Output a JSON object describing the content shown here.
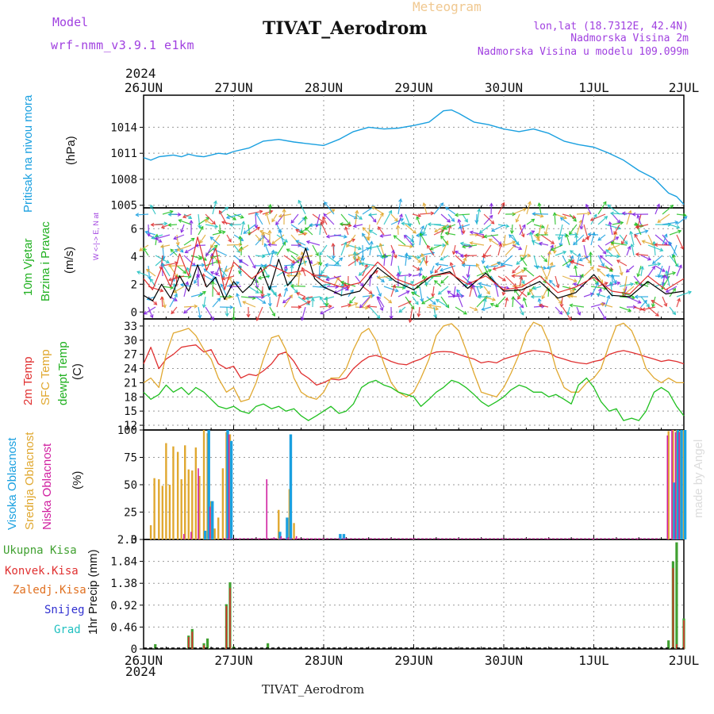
{
  "header": {
    "model_label": "Model",
    "model_name": "wrf-nmm_v3.9.1 e1km",
    "kind": "Meteogram",
    "station": "TIVAT_Aerodrom",
    "lonlat": "lon,lat (18.7312E, 42.4N)",
    "altitude": "Nadmorska Visina 2m",
    "model_altitude": "Nadmorska Visina u modelu 109.099m",
    "watermark": "made by Angel",
    "footer_station": "TIVAT_Aerodrom"
  },
  "time_axis": {
    "year": "2024",
    "ticks": [
      "26JUN",
      "27JUN",
      "28JUN",
      "29JUN",
      "30JUN",
      "1JUL",
      "2JUL"
    ]
  },
  "colors": {
    "pressure": "#1aa0e0",
    "t2m": "#e03030",
    "tsfc": "#e0a830",
    "dewpt": "#20c020",
    "wind_speed": "#000000",
    "cloud_high": "#1aa0e0",
    "cloud_mid": "#e0a830",
    "cloud_low": "#d020a0",
    "precip_total": "#40a030",
    "precip_conv": "#e03030",
    "precip_frozen": "#e07020",
    "precip_snow": "#3030d0",
    "precip_hail": "#20c0c0",
    "wind_key": "#a040e0"
  },
  "chart_data": [
    {
      "type": "line",
      "panel": "pressure",
      "ylabel": [
        "Pritisak na nivou mora",
        "(hPa)"
      ],
      "yticks": [
        1005,
        1008,
        1011,
        1014
      ],
      "ylim": [
        1004.7,
        1017.7
      ],
      "x_unit": "days since 26JUN 00Z",
      "series": [
        {
          "color_key": "pressure",
          "x": [
            0,
            0.08,
            0.17,
            0.25,
            0.33,
            0.42,
            0.5,
            0.58,
            0.67,
            0.75,
            0.83,
            0.92,
            1.0,
            1.17,
            1.33,
            1.5,
            1.67,
            1.83,
            2.0,
            2.17,
            2.33,
            2.5,
            2.67,
            2.83,
            3.0,
            3.17,
            3.33,
            3.42,
            3.5,
            3.67,
            3.83,
            4.0,
            4.17,
            4.33,
            4.5,
            4.67,
            4.83,
            5.0,
            5.17,
            5.33,
            5.5,
            5.67,
            5.83,
            5.92,
            6.0
          ],
          "values": [
            1010.5,
            1010.2,
            1010.6,
            1010.7,
            1010.8,
            1010.6,
            1010.9,
            1010.7,
            1010.6,
            1010.8,
            1011.0,
            1010.9,
            1011.2,
            1011.6,
            1012.4,
            1012.6,
            1012.3,
            1012.1,
            1011.9,
            1012.6,
            1013.5,
            1014.0,
            1013.8,
            1013.9,
            1014.2,
            1014.6,
            1015.9,
            1016.0,
            1015.6,
            1014.6,
            1014.3,
            1013.8,
            1013.5,
            1013.8,
            1013.3,
            1012.4,
            1012.0,
            1011.7,
            1011.0,
            1010.2,
            1009.0,
            1008.1,
            1006.4,
            1006.0,
            1005.1
          ]
        }
      ]
    },
    {
      "type": "line",
      "panel": "wind",
      "ylabel": [
        "10m Vjetar",
        "Brzina i Pravac",
        "(m/s)"
      ],
      "wind_key": "W <-|-> E, N at top, S at bottom",
      "yticks": [
        0,
        2,
        4,
        6
      ],
      "ylim": [
        -0.5,
        7.5
      ],
      "x_unit": "days since 26JUN 00Z",
      "series": [
        {
          "name": "speed",
          "color_key": "wind_speed",
          "x": [
            0,
            0.1,
            0.2,
            0.3,
            0.4,
            0.5,
            0.6,
            0.7,
            0.8,
            0.9,
            1.0,
            1.1,
            1.2,
            1.3,
            1.4,
            1.5,
            1.6,
            1.7,
            1.8,
            1.9,
            2.0,
            2.2,
            2.4,
            2.6,
            2.8,
            3.0,
            3.2,
            3.4,
            3.6,
            3.8,
            4.0,
            4.2,
            4.4,
            4.6,
            4.8,
            5.0,
            5.2,
            5.4,
            5.6,
            5.8,
            6.0
          ],
          "values": [
            1.2,
            0.8,
            2.0,
            1.0,
            2.6,
            1.5,
            3.4,
            1.8,
            2.5,
            0.9,
            2.2,
            1.4,
            2.0,
            3.2,
            1.6,
            3.8,
            1.9,
            2.7,
            4.6,
            2.4,
            1.8,
            1.2,
            1.5,
            3.2,
            2.2,
            1.6,
            2.6,
            2.9,
            1.7,
            2.8,
            1.5,
            1.6,
            2.2,
            1.0,
            1.4,
            2.7,
            1.2,
            1.1,
            2.2,
            1.3,
            1.5
          ]
        },
        {
          "name": "gust",
          "color_key": "t2m",
          "x": [
            0,
            0.1,
            0.2,
            0.3,
            0.4,
            0.5,
            0.6,
            0.7,
            0.8,
            0.9,
            1.0,
            1.2,
            1.4,
            1.6,
            1.8,
            2.0,
            2.2,
            2.4,
            2.6,
            2.8,
            3.0,
            3.2,
            3.4,
            3.6,
            3.8,
            4.0,
            4.2,
            4.4,
            4.6,
            4.8,
            5.0,
            5.2,
            5.4,
            5.6,
            5.8,
            6.0
          ],
          "values": [
            2.4,
            1.6,
            3.2,
            1.8,
            4.2,
            2.6,
            5.4,
            3.0,
            4.6,
            1.6,
            3.6,
            2.4,
            3.4,
            2.8,
            3.0,
            2.2,
            1.8,
            2.1,
            3.6,
            2.4,
            1.9,
            2.6,
            2.8,
            2.0,
            2.6,
            1.6,
            1.8,
            2.6,
            1.4,
            1.8,
            2.5,
            1.5,
            1.3,
            2.6,
            1.6,
            2.4
          ]
        }
      ]
    },
    {
      "type": "line",
      "panel": "temperature",
      "ylabel": [
        "2m Temp",
        "SFC Temp",
        "dewpt Temp",
        "(C)"
      ],
      "yticks": [
        12,
        15,
        18,
        21,
        24,
        27,
        30,
        33
      ],
      "ylim": [
        11,
        34.5
      ],
      "x_unit": "days since 26JUN 00Z",
      "series": [
        {
          "name": "2m Temp",
          "color_key": "t2m",
          "x": [
            0,
            0.08,
            0.17,
            0.25,
            0.33,
            0.42,
            0.5,
            0.58,
            0.67,
            0.75,
            0.83,
            0.92,
            1.0,
            1.08,
            1.17,
            1.25,
            1.33,
            1.42,
            1.5,
            1.58,
            1.67,
            1.75,
            1.83,
            1.92,
            2.0,
            2.08,
            2.17,
            2.25,
            2.33,
            2.42,
            2.5,
            2.58,
            2.67,
            2.75,
            2.83,
            2.92,
            3.0,
            3.08,
            3.17,
            3.25,
            3.33,
            3.42,
            3.5,
            3.58,
            3.67,
            3.75,
            3.83,
            3.92,
            4.0,
            4.08,
            4.17,
            4.25,
            4.33,
            4.42,
            4.5,
            4.58,
            4.67,
            4.75,
            4.83,
            4.92,
            5.0,
            5.08,
            5.17,
            5.25,
            5.33,
            5.42,
            5.5,
            5.58,
            5.67,
            5.75,
            5.83,
            5.92,
            6.0
          ],
          "values": [
            25,
            28.5,
            24,
            26,
            27,
            28.5,
            28.8,
            29,
            27.5,
            28,
            25,
            24,
            24.5,
            22,
            22.8,
            22.5,
            23.5,
            25,
            27,
            27.5,
            25.5,
            23,
            22,
            20.5,
            21,
            21.8,
            21.6,
            22,
            24,
            25.5,
            26.5,
            26.8,
            26.2,
            25.5,
            25,
            24.8,
            25.5,
            26,
            27,
            27.5,
            27.6,
            27.5,
            27,
            26.5,
            26,
            25.2,
            25.5,
            25.2,
            26,
            26.5,
            27,
            27.5,
            27.8,
            27.6,
            27.4,
            26.5,
            26,
            25.5,
            25.2,
            25,
            25.5,
            25.8,
            27,
            27.5,
            27.8,
            27.4,
            27,
            26.5,
            26,
            25.5,
            25.8,
            25.5,
            25
          ]
        },
        {
          "name": "SFC Temp",
          "color_key": "tsfc",
          "x": [
            0,
            0.08,
            0.17,
            0.25,
            0.33,
            0.42,
            0.5,
            0.58,
            0.67,
            0.75,
            0.83,
            0.92,
            1.0,
            1.08,
            1.17,
            1.25,
            1.33,
            1.42,
            1.5,
            1.58,
            1.67,
            1.75,
            1.83,
            1.92,
            2.0,
            2.08,
            2.17,
            2.25,
            2.33,
            2.42,
            2.5,
            2.58,
            2.67,
            2.75,
            2.83,
            2.92,
            3.0,
            3.08,
            3.17,
            3.25,
            3.33,
            3.42,
            3.5,
            3.58,
            3.67,
            3.75,
            3.83,
            3.92,
            4.0,
            4.08,
            4.17,
            4.25,
            4.33,
            4.42,
            4.5,
            4.58,
            4.67,
            4.75,
            4.83,
            4.92,
            5.0,
            5.08,
            5.17,
            5.25,
            5.33,
            5.42,
            5.5,
            5.58,
            5.67,
            5.75,
            5.83,
            5.92,
            6.0
          ],
          "values": [
            21,
            22,
            20,
            27,
            31.5,
            32,
            32.5,
            31,
            28,
            26,
            22,
            19,
            20,
            17,
            17.5,
            21,
            26,
            30.5,
            31,
            28,
            22,
            19,
            18,
            17.5,
            19,
            22,
            22,
            24,
            28,
            31.5,
            32.5,
            30,
            25,
            21,
            19,
            18,
            19,
            22,
            26,
            31,
            33,
            33.5,
            32,
            28,
            23,
            19,
            18.5,
            18,
            20,
            23,
            27,
            31.5,
            33.8,
            33,
            29.5,
            24,
            20,
            19,
            19,
            21,
            22,
            24,
            29,
            33,
            33.6,
            32,
            28.5,
            24,
            22,
            21,
            22,
            21,
            21
          ]
        },
        {
          "name": "dewpt Temp",
          "color_key": "dewpt",
          "x": [
            0,
            0.08,
            0.17,
            0.25,
            0.33,
            0.42,
            0.5,
            0.58,
            0.67,
            0.75,
            0.83,
            0.92,
            1.0,
            1.08,
            1.17,
            1.25,
            1.33,
            1.42,
            1.5,
            1.58,
            1.67,
            1.75,
            1.83,
            1.92,
            2.0,
            2.08,
            2.17,
            2.25,
            2.33,
            2.42,
            2.5,
            2.58,
            2.67,
            2.75,
            2.83,
            2.92,
            3.0,
            3.08,
            3.17,
            3.25,
            3.33,
            3.42,
            3.5,
            3.58,
            3.67,
            3.75,
            3.83,
            3.92,
            4.0,
            4.08,
            4.17,
            4.25,
            4.33,
            4.42,
            4.5,
            4.58,
            4.67,
            4.75,
            4.83,
            4.92,
            5.0,
            5.08,
            5.17,
            5.25,
            5.33,
            5.42,
            5.5,
            5.58,
            5.67,
            5.75,
            5.83,
            5.92,
            6.0
          ],
          "values": [
            19,
            17.5,
            18.5,
            20.5,
            19,
            20,
            18.5,
            20,
            19,
            17.5,
            16,
            15.5,
            16,
            15,
            14.5,
            16,
            16.5,
            15.5,
            16,
            15,
            15.5,
            14,
            13,
            14,
            15,
            16,
            14.5,
            15,
            16.5,
            20,
            21,
            21.5,
            20.5,
            20,
            19,
            18.5,
            18,
            16,
            17.5,
            19,
            20,
            21.5,
            21,
            20,
            18.5,
            17,
            16,
            17,
            18,
            19.5,
            20.5,
            20,
            19,
            19,
            18,
            18.5,
            17.5,
            16.5,
            20.5,
            22,
            20,
            17,
            15,
            15.5,
            13,
            13.5,
            13,
            15,
            19,
            20,
            19,
            16,
            14
          ]
        }
      ]
    },
    {
      "type": "bar",
      "panel": "clouds",
      "ylabel": [
        "Visoka Oblacnost",
        "Srednja Oblacnost",
        "Niska Oblacnost",
        "(%)"
      ],
      "yticks": [
        0,
        25,
        50,
        75,
        100
      ],
      "ylim": [
        0,
        100
      ],
      "x_unit": "days since 26JUN 00Z",
      "series": [
        {
          "name": "Srednja",
          "color_key": "cloud_mid",
          "x": [
            0.08,
            0.12,
            0.17,
            0.21,
            0.25,
            0.29,
            0.33,
            0.38,
            0.42,
            0.46,
            0.5,
            0.54,
            0.58,
            0.62,
            0.67,
            0.71,
            0.75,
            0.79,
            0.83,
            0.88,
            0.92,
            0.96,
            1.5,
            1.62,
            1.67,
            5.83,
            5.88,
            5.92,
            5.96,
            6.0
          ],
          "values": [
            13,
            56,
            55,
            49,
            88,
            50,
            85,
            80,
            55,
            86,
            64,
            63,
            84,
            58,
            100,
            97,
            35,
            10,
            20,
            65,
            98,
            96,
            27,
            46,
            15,
            99,
            100,
            100,
            99,
            100
          ]
        },
        {
          "name": "Visoka",
          "color_key": "cloud_high",
          "x": [
            0.67,
            0.71,
            0.75,
            0.92,
            0.96,
            1.5,
            1.58,
            1.62,
            2.17,
            2.21,
            5.88,
            5.92,
            5.96,
            6.0
          ],
          "values": [
            8,
            100,
            35,
            100,
            90,
            7,
            20,
            96,
            5,
            5,
            52,
            100,
            100,
            100
          ]
        },
        {
          "name": "Niska",
          "color_key": "cloud_low",
          "x": [
            0.46,
            0.54,
            0.62,
            0.75,
            0.96,
            1.08,
            1.29,
            1.38,
            1.46,
            1.54,
            1.62,
            1.71,
            1.75,
            1.79,
            1.83,
            1.88,
            1.92,
            1.96,
            2.0,
            2.25,
            2.5,
            3.0,
            3.5,
            4.0,
            4.5,
            5.0,
            5.5,
            5.83,
            5.88,
            5.92,
            5.96
          ],
          "values": [
            5,
            7,
            65,
            30,
            96,
            1,
            1,
            55,
            2,
            3,
            2,
            3,
            1,
            1,
            1,
            1,
            1,
            1,
            1,
            1,
            1,
            1,
            1,
            1,
            1,
            1,
            1,
            95,
            100,
            98,
            98
          ]
        }
      ]
    },
    {
      "type": "bar",
      "panel": "precipitation",
      "ylabel": [
        "Ukupna Kisa",
        "Konvek.Kisa",
        "Zaledj.Kisa",
        "Snijeg",
        "Grad",
        "1hr Precip (mm)"
      ],
      "yticks": [
        0,
        0.46,
        0.92,
        1.38,
        1.84,
        2.3
      ],
      "ylim": [
        0,
        2.3
      ],
      "x_unit": "days since 26JUN 00Z",
      "series": [
        {
          "name": "Ukupna",
          "color_key": "precip_total",
          "x": [
            0.13,
            0.5,
            0.54,
            0.67,
            0.71,
            0.92,
            0.96,
            1.0,
            1.38,
            5.83,
            5.88,
            5.92,
            6.0
          ],
          "values": [
            0.1,
            0.28,
            0.42,
            0.12,
            0.22,
            0.94,
            1.4,
            0.05,
            0.12,
            0.18,
            1.84,
            2.24,
            0.64
          ]
        },
        {
          "name": "Konvek",
          "color_key": "precip_conv",
          "x": [
            0.5,
            0.54,
            0.67,
            0.92,
            0.96,
            5.88,
            5.92,
            6.0
          ],
          "values": [
            0.25,
            0.36,
            0.08,
            0.9,
            1.28,
            1.7,
            0.1,
            0.6
          ]
        }
      ]
    }
  ]
}
